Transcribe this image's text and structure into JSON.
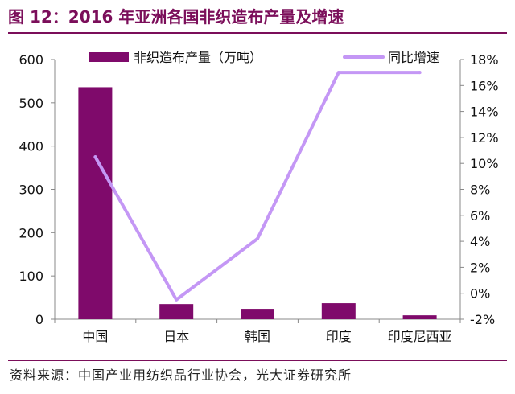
{
  "title": "图 12：2016 年亚洲各国非织造布产量及增速",
  "source": "资料来源：中国产业用纺织品行业协会，光大证券研究所",
  "colors": {
    "brand": "#7b0e5a",
    "bar": "#7f0a6b",
    "line": "#c497f5"
  },
  "chart_data": {
    "type": "bar",
    "categories": [
      "中国",
      "日本",
      "韩国",
      "印度",
      "印度尼西亚"
    ],
    "series": [
      {
        "name": "非织造布产量（万吨）",
        "type": "bar",
        "axis": "left",
        "values": [
          536,
          35,
          24,
          37,
          9
        ]
      },
      {
        "name": "同比增速",
        "type": "line",
        "axis": "right",
        "values": [
          10.5,
          -0.5,
          4.2,
          17.0,
          17.0
        ]
      }
    ],
    "y_left": {
      "min": 0,
      "max": 600,
      "ticks": [
        "0",
        "100",
        "200",
        "300",
        "400",
        "500",
        "600"
      ]
    },
    "y_right": {
      "min": -2,
      "max": 18,
      "ticks": [
        "-2%",
        "0%",
        "2%",
        "4%",
        "6%",
        "8%",
        "10%",
        "12%",
        "14%",
        "16%",
        "18%"
      ]
    },
    "grid": false,
    "legend_position": "top"
  }
}
